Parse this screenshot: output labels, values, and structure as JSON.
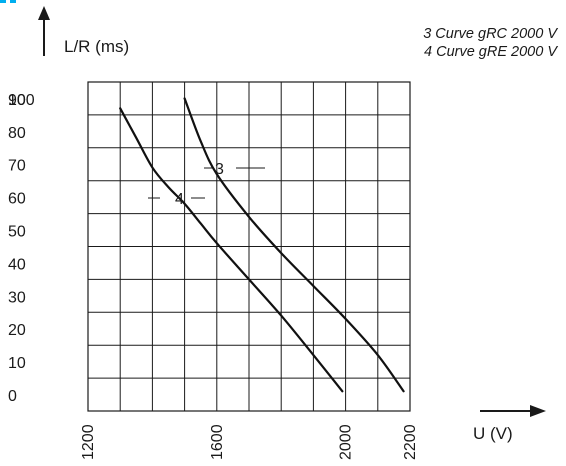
{
  "accent_color": "#00aeef",
  "chart_data": {
    "type": "line",
    "xlabel": "U (V)",
    "ylabel": "L/R (ms)",
    "xlim": [
      1200,
      2200
    ],
    "ylim": [
      0,
      100
    ],
    "x_ticks": [
      "1200",
      "1600",
      "2000",
      "2200"
    ],
    "y_ticks": [
      "0",
      "10",
      "20",
      "30",
      "40",
      "50",
      "60",
      "70",
      "80",
      "90",
      "100"
    ],
    "grid": true,
    "legend": [
      "3 Curve gRC 2000 V",
      "4 Curve gRE 2000 V"
    ],
    "legend_position": "top-right",
    "series": [
      {
        "name": "3",
        "x": [
          1500,
          1550,
          1600,
          1700,
          1800,
          1900,
          2000,
          2100,
          2180
        ],
        "y": [
          95,
          82,
          72,
          59,
          48,
          38,
          28,
          17,
          6
        ]
      },
      {
        "name": "4",
        "x": [
          1300,
          1350,
          1400,
          1450,
          1500,
          1550,
          1600,
          1700,
          1800,
          1900,
          1990
        ],
        "y": [
          92,
          83,
          74,
          68,
          63,
          57,
          51,
          40,
          29,
          17,
          6
        ]
      }
    ]
  }
}
